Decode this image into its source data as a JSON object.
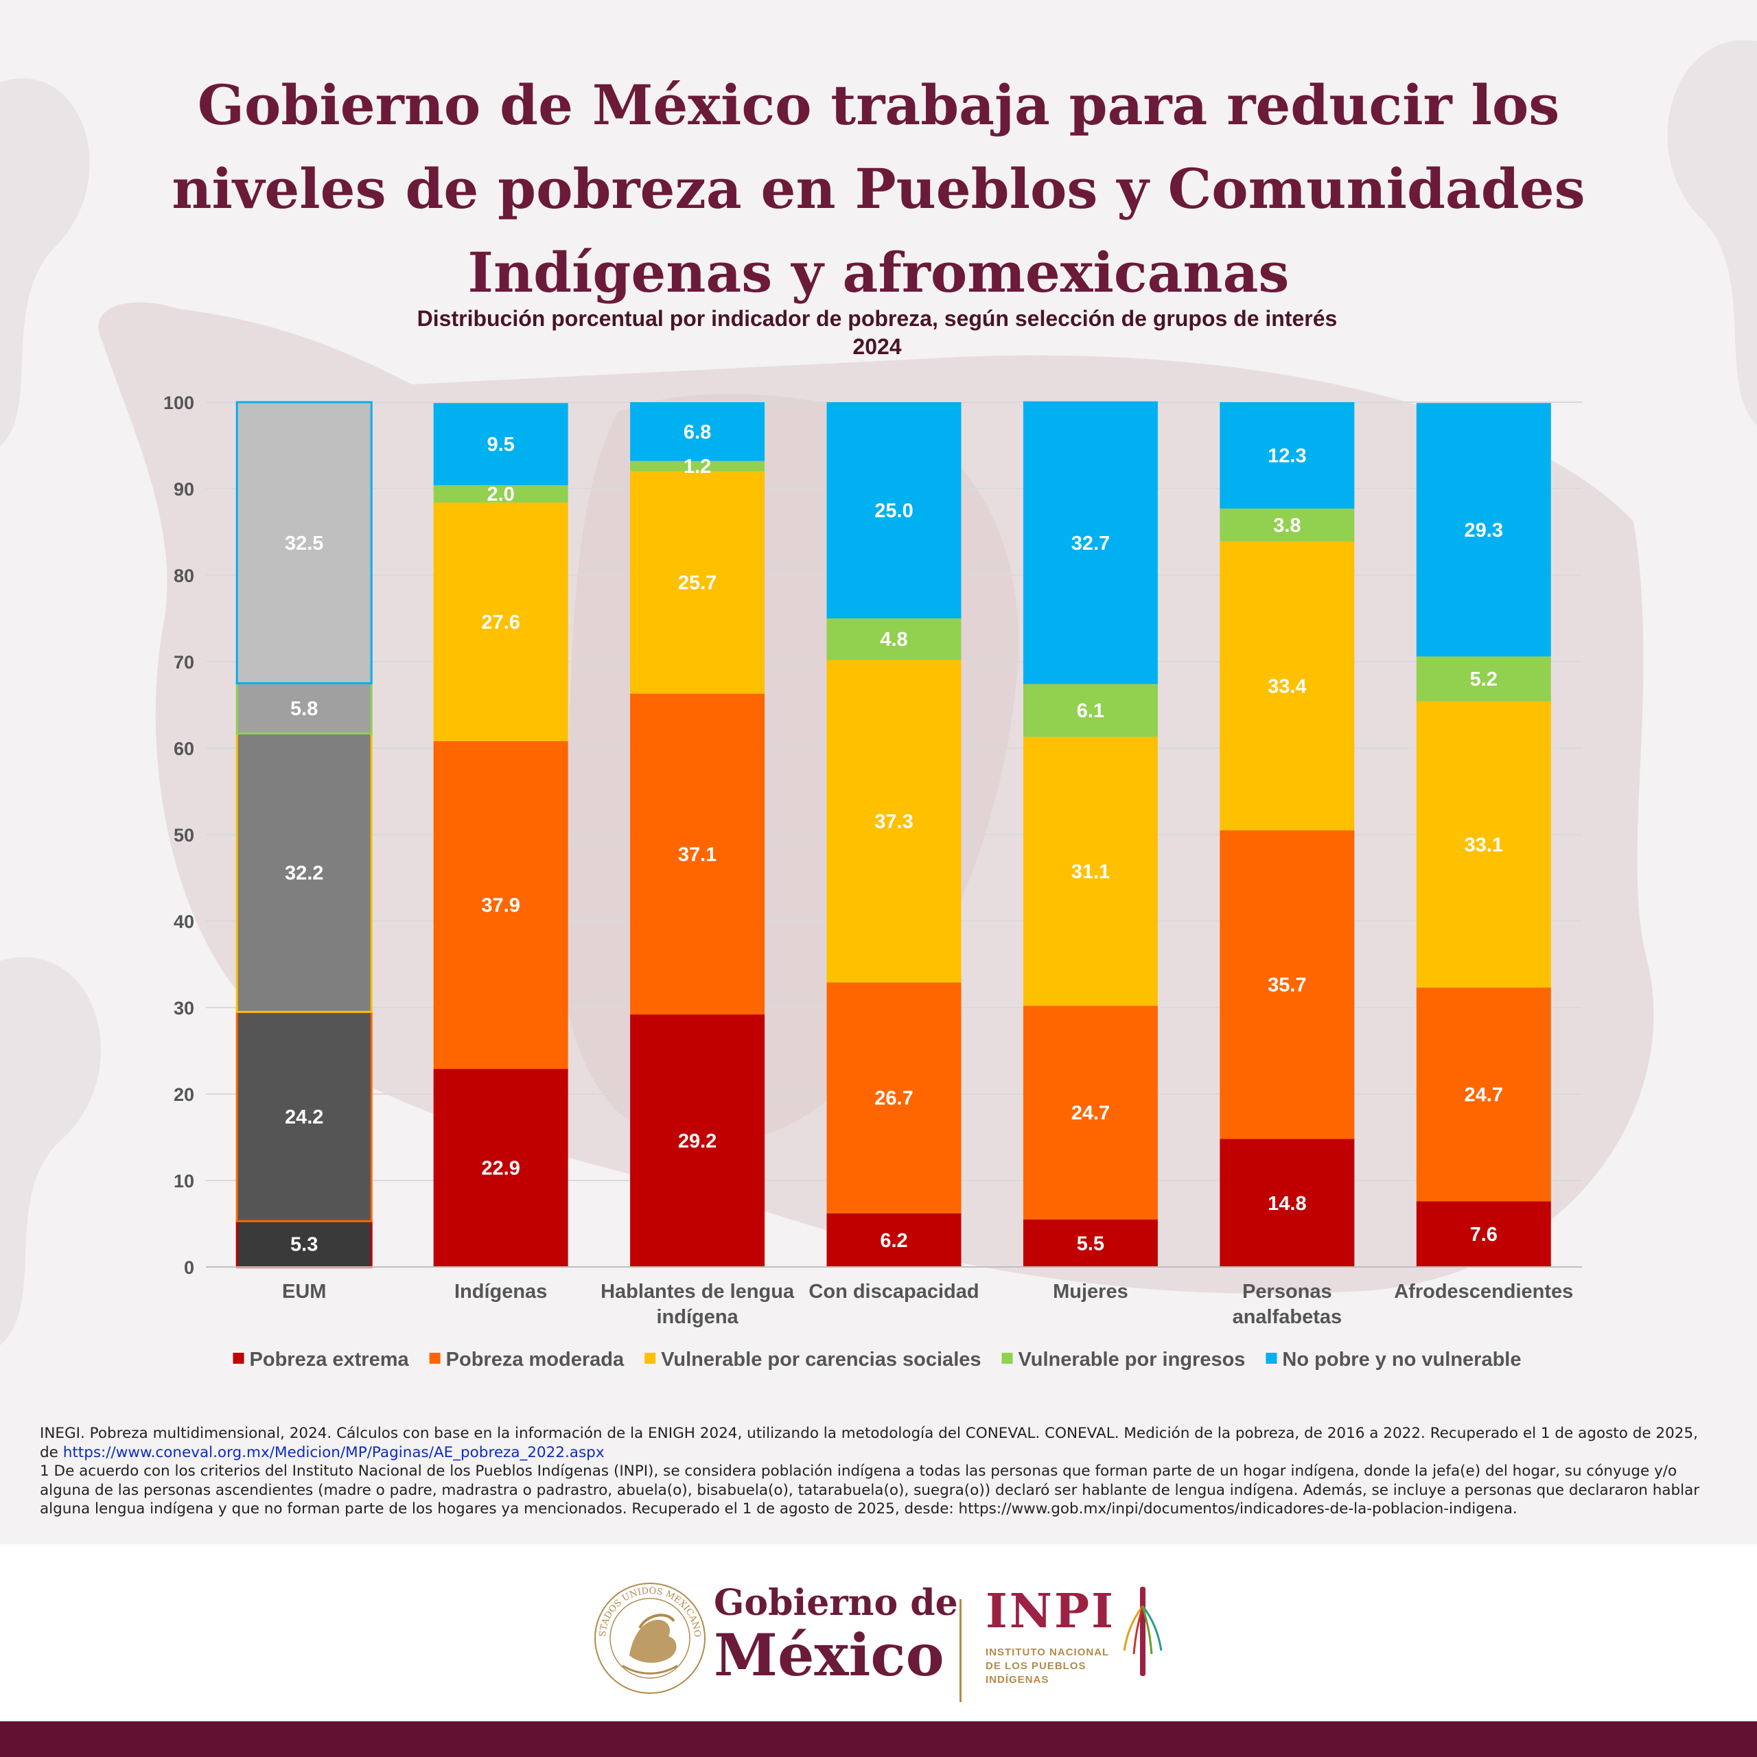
{
  "header": {
    "title": "Gobierno de México trabaja para reducir los niveles de pobreza en Pueblos y Comunidades Indígenas y afromexicanas"
  },
  "chart_data": {
    "type": "bar",
    "stacked": true,
    "title": "Distribución porcentual por indicador de pobreza, según selección de grupos de interés",
    "subtitle": "2024",
    "categories": [
      "EUM",
      "Indígenas",
      "Hablantes de lengua indígena",
      "Con discapacidad",
      "Mujeres",
      "Personas analfabetas",
      "Afrodescendientes"
    ],
    "category_lines": [
      [
        "EUM"
      ],
      [
        "Indígenas"
      ],
      [
        "Hablantes de lengua",
        "indígena"
      ],
      [
        "Con discapacidad"
      ],
      [
        "Mujeres"
      ],
      [
        "Personas",
        "analfabetas"
      ],
      [
        "Afrodescendientes"
      ]
    ],
    "ylim": [
      0,
      100
    ],
    "yticks": [
      0,
      10,
      20,
      30,
      40,
      50,
      60,
      70,
      80,
      90,
      100
    ],
    "grid": true,
    "legend_position": "bottom",
    "series": [
      {
        "name": "Pobreza extrema",
        "color": "#c00000",
        "values": [
          5.3,
          22.9,
          29.2,
          6.2,
          5.5,
          14.8,
          7.6
        ]
      },
      {
        "name": "Pobreza moderada",
        "color": "#ff6600",
        "values": [
          24.2,
          37.9,
          37.1,
          26.7,
          24.7,
          35.7,
          24.7
        ]
      },
      {
        "name": "Vulnerable por carencias sociales",
        "color": "#ffc000",
        "values": [
          32.2,
          27.6,
          25.7,
          37.3,
          31.1,
          33.4,
          33.1
        ]
      },
      {
        "name": "Vulnerable por ingresos",
        "color": "#92d050",
        "values": [
          5.8,
          2.0,
          1.2,
          4.8,
          6.1,
          3.8,
          5.2
        ]
      },
      {
        "name": "No pobre y no vulnerable",
        "color": "#00b0f0",
        "values": [
          32.5,
          9.5,
          6.8,
          25.0,
          32.7,
          12.3,
          29.3
        ]
      }
    ],
    "highlight_first_bar": {
      "greyscale_fills": [
        "#3a3a3a",
        "#555555",
        "#7f7f7f",
        "#a0a0a0",
        "#bfbfbf"
      ]
    }
  },
  "notes": {
    "source_text": "INEGI. Pobreza multidimensional, 2024. Cálculos con base en la información de la ENIGH 2024, utilizando la metodología del CONEVAL. CONEVAL. Medición de la pobreza, de 2016 a 2022. Recuperado el 1 de agosto de 2025, de ",
    "source_link": "https://www.coneval.org.mx/Medicion/MP/Paginas/AE_pobreza_2022.aspx",
    "footnote": "1 De acuerdo con los criterios del Instituto Nacional de los Pueblos Indígenas (INPI), se considera población indígena a todas las personas que forman parte de un hogar indígena, donde la jefa(e) del hogar, su cónyuge y/o alguna de las personas ascendientes (madre o padre, madrastra o padrastro, abuela(o), bisabuela(o), tatarabuela(o), suegra(o)) declaró ser hablante de lengua indígena. Además, se incluye a personas que declararon hablar alguna lengua indígena y que no forman parte de los hogares ya mencionados. Recuperado el 1 de agosto de 2025, desde: https://www.gob.mx/inpi/documentos/indicadores-de-la-poblacion-indigena."
  },
  "footer": {
    "gob_line1": "Gobierno de",
    "gob_line2": "México",
    "inpi_word": "INPI",
    "inpi_sub1": "INSTITUTO NACIONAL",
    "inpi_sub2": "DE LOS PUEBLOS",
    "inpi_sub3": "INDÍGENAS",
    "seal_text": "ESTADOS UNIDOS MEXICANOS"
  },
  "colors": {
    "brand": "#611232",
    "title": "#6b1a3a",
    "gold": "#b28b4a"
  }
}
